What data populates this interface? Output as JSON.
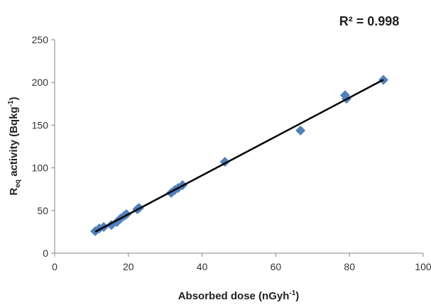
{
  "chart_data": {
    "type": "scatter",
    "annotation": "R² = 0.998",
    "xlabel": [
      "Absorbed dose (nGyh",
      "-1",
      ")"
    ],
    "ylabel": [
      "R",
      "eq",
      " activity (Bqkg",
      "-1",
      ")"
    ],
    "x": [
      11.0,
      12.1,
      13.3,
      15.4,
      16.9,
      17.9,
      18.9,
      19.5,
      22.4,
      22.9,
      31.6,
      32.6,
      33.5,
      34.7,
      46.2,
      66.7,
      78.8,
      79.2,
      89.2
    ],
    "series": [
      {
        "color": "#4f81bd",
        "values": [
          25.7,
          29,
          30.7,
          33,
          36.5,
          40.7,
          44,
          45.7,
          51.5,
          53,
          70.6,
          74,
          76.4,
          79.7,
          107,
          143.7,
          185,
          181,
          203
        ]
      }
    ],
    "trendline": true,
    "xlim": [
      0,
      100
    ],
    "xticks": [
      0,
      20,
      40,
      60,
      80,
      100
    ],
    "ylim": [
      0,
      250
    ],
    "yticks": [
      0,
      50,
      100,
      150,
      200,
      250
    ]
  }
}
